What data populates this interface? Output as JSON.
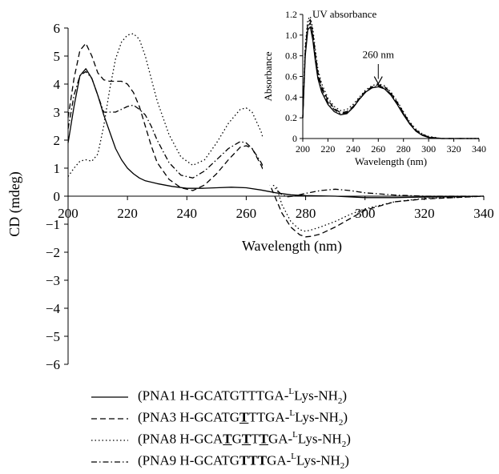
{
  "chart_data": [
    {
      "type": "line",
      "xlabel": "Wavelength (nm)",
      "ylabel": "CD (mdeg)",
      "xlim": [
        200,
        340
      ],
      "ylim": [
        -6,
        6
      ],
      "xticks": [
        200,
        220,
        240,
        260,
        280,
        300,
        320,
        340
      ],
      "yticks": [
        6,
        5,
        4,
        3,
        2,
        1,
        0,
        -1,
        -2,
        -3,
        -4,
        -5,
        -6
      ],
      "legend_position": "bottom",
      "series": [
        {
          "name": "(PNA1 H-GCATGTTTGA-ᴸLys-NH₂)",
          "dash": "solid",
          "x": [
            200,
            202,
            204,
            206,
            208,
            210,
            212,
            214,
            216,
            218,
            220,
            222,
            224,
            226,
            228,
            230,
            235,
            240,
            245,
            250,
            255,
            260,
            265,
            270,
            275,
            280,
            290,
            300,
            310,
            320,
            330,
            340
          ],
          "y": [
            1.9,
            3.2,
            4.3,
            4.55,
            4.2,
            3.6,
            2.9,
            2.3,
            1.7,
            1.3,
            1.0,
            0.8,
            0.65,
            0.55,
            0.5,
            0.45,
            0.35,
            0.28,
            0.28,
            0.3,
            0.32,
            0.3,
            0.22,
            0.12,
            0.05,
            0.02,
            0,
            -0.05,
            -0.05,
            -0.03,
            -0.02,
            0
          ]
        },
        {
          "name": "(PNA3 H-GCATGTTTGA-ᴸLys-NH₂)",
          "dash": "dashed",
          "x": [
            200,
            202,
            204,
            206,
            208,
            210,
            212,
            214,
            216,
            218,
            220,
            222,
            224,
            226,
            228,
            230,
            234,
            238,
            242,
            246,
            250,
            254,
            258,
            260,
            262,
            265,
            268,
            270,
            272,
            275,
            278,
            280,
            282,
            285,
            290,
            295,
            300,
            310,
            320,
            330,
            340
          ],
          "y": [
            2.8,
            4.2,
            5.2,
            5.45,
            5.0,
            4.4,
            4.15,
            4.1,
            4.1,
            4.1,
            4.0,
            3.7,
            3.2,
            2.5,
            1.8,
            1.2,
            0.6,
            0.3,
            0.2,
            0.4,
            0.8,
            1.3,
            1.75,
            1.8,
            1.7,
            1.1,
            0.4,
            -0.1,
            -0.6,
            -1.1,
            -1.38,
            -1.45,
            -1.43,
            -1.35,
            -1.1,
            -0.8,
            -0.5,
            -0.2,
            -0.1,
            -0.05,
            0
          ]
        },
        {
          "name": "(PNA8 H-GCATGTTTGA-ᴸLys-NH₂)",
          "dash": "dotted",
          "x": [
            200,
            202,
            204,
            206,
            208,
            210,
            212,
            214,
            216,
            218,
            220,
            222,
            224,
            226,
            228,
            230,
            234,
            238,
            242,
            246,
            250,
            254,
            258,
            260,
            262,
            265,
            268,
            270,
            272,
            275,
            278,
            280,
            282,
            285,
            290,
            295,
            300,
            310,
            320,
            330,
            340
          ],
          "y": [
            0.7,
            1.0,
            1.25,
            1.3,
            1.25,
            1.5,
            2.5,
            3.8,
            4.9,
            5.5,
            5.75,
            5.8,
            5.6,
            5.0,
            4.2,
            3.4,
            2.2,
            1.4,
            1.1,
            1.3,
            1.9,
            2.6,
            3.1,
            3.15,
            3.0,
            2.3,
            1.2,
            0.4,
            -0.3,
            -0.9,
            -1.2,
            -1.25,
            -1.2,
            -1.1,
            -0.9,
            -0.65,
            -0.45,
            -0.2,
            -0.08,
            -0.05,
            0
          ]
        },
        {
          "name": "(PNA9 H-GCATGTTTGA-ᴸLys-NH₂)",
          "dash": "dashdot",
          "x": [
            200,
            202,
            204,
            206,
            208,
            210,
            212,
            214,
            216,
            218,
            220,
            222,
            224,
            226,
            228,
            230,
            234,
            238,
            242,
            246,
            250,
            254,
            258,
            260,
            262,
            265,
            268,
            270,
            272,
            274,
            276,
            280,
            285,
            290,
            295,
            300,
            310,
            320,
            330,
            340
          ],
          "y": [
            2.4,
            3.6,
            4.3,
            4.45,
            4.2,
            3.6,
            3.0,
            3.0,
            3.0,
            3.1,
            3.2,
            3.25,
            3.1,
            2.9,
            2.5,
            2.0,
            1.2,
            0.75,
            0.65,
            0.9,
            1.3,
            1.7,
            1.95,
            1.9,
            1.7,
            1.2,
            0.6,
            0.25,
            0.05,
            -0.02,
            0.0,
            0.1,
            0.2,
            0.25,
            0.2,
            0.12,
            0.04,
            0.0,
            0.0,
            0
          ]
        }
      ]
    },
    {
      "type": "line",
      "title": "UV absorbance",
      "xlabel": "Wavelength (nm)",
      "ylabel": "Absorbance",
      "xlim": [
        200,
        340
      ],
      "ylim": [
        0,
        1.2
      ],
      "xticks": [
        200,
        220,
        240,
        260,
        280,
        300,
        320,
        340
      ],
      "yticks": [
        0,
        0.2,
        0.4,
        0.6,
        0.8,
        1.0,
        1.2
      ],
      "annotation": "260 nm",
      "series": [
        {
          "dash": "solid",
          "x": [
            200,
            202,
            204,
            206,
            208,
            210,
            212,
            215,
            220,
            225,
            230,
            235,
            240,
            245,
            250,
            255,
            260,
            265,
            270,
            275,
            280,
            285,
            290,
            295,
            300,
            310,
            320,
            330,
            340
          ],
          "y": [
            0.2,
            0.8,
            1.05,
            1.08,
            0.95,
            0.75,
            0.58,
            0.45,
            0.33,
            0.26,
            0.23,
            0.24,
            0.3,
            0.38,
            0.45,
            0.49,
            0.5,
            0.48,
            0.42,
            0.33,
            0.23,
            0.14,
            0.07,
            0.03,
            0.01,
            0,
            0,
            0,
            0
          ]
        },
        {
          "dash": "dashed",
          "x": [
            200,
            202,
            204,
            206,
            208,
            210,
            212,
            215,
            220,
            225,
            230,
            235,
            240,
            245,
            250,
            255,
            260,
            265,
            270,
            275,
            280,
            285,
            290,
            295,
            300,
            310,
            320,
            330,
            340
          ],
          "y": [
            0.2,
            0.85,
            1.12,
            1.15,
            1.02,
            0.82,
            0.64,
            0.5,
            0.37,
            0.29,
            0.25,
            0.26,
            0.31,
            0.39,
            0.46,
            0.5,
            0.52,
            0.5,
            0.44,
            0.35,
            0.25,
            0.15,
            0.08,
            0.04,
            0.015,
            0,
            0,
            0,
            0
          ]
        },
        {
          "dash": "dotted",
          "x": [
            200,
            202,
            204,
            206,
            208,
            210,
            212,
            215,
            220,
            225,
            230,
            235,
            240,
            245,
            250,
            255,
            260,
            265,
            270,
            275,
            280,
            285,
            290,
            295,
            300,
            310,
            320,
            330,
            340
          ],
          "y": [
            0.22,
            0.9,
            1.15,
            1.18,
            1.06,
            0.86,
            0.67,
            0.53,
            0.39,
            0.31,
            0.27,
            0.28,
            0.33,
            0.4,
            0.47,
            0.51,
            0.53,
            0.51,
            0.45,
            0.36,
            0.26,
            0.16,
            0.09,
            0.045,
            0.02,
            0,
            0,
            0,
            0
          ]
        },
        {
          "dash": "dashdot",
          "x": [
            200,
            202,
            204,
            206,
            208,
            210,
            212,
            215,
            220,
            225,
            230,
            235,
            240,
            245,
            250,
            255,
            260,
            265,
            270,
            275,
            280,
            285,
            290,
            295,
            300,
            310,
            320,
            330,
            340
          ],
          "y": [
            0.2,
            0.82,
            1.08,
            1.12,
            0.99,
            0.79,
            0.61,
            0.48,
            0.35,
            0.28,
            0.24,
            0.25,
            0.3,
            0.38,
            0.45,
            0.49,
            0.51,
            0.49,
            0.43,
            0.34,
            0.24,
            0.14,
            0.075,
            0.035,
            0.015,
            0,
            0,
            0,
            0
          ]
        }
      ]
    }
  ],
  "legend": {
    "items": [
      {
        "dash": "solid",
        "prefix": "(PNA1 H-GCA",
        "mid": "TGTTTGA-",
        "sup": "L",
        "tail": "Lys-NH",
        "sub": "2",
        "end": ")"
      },
      {
        "dash": "dashed",
        "prefix": "(PNA3 H-GCATG",
        "mid": "TTTGA-",
        "sup": "L",
        "tail": "Lys-NH",
        "sub": "2",
        "end": ")"
      },
      {
        "dash": "dotted",
        "prefix": "(PNA8 H-GCA",
        "mid": "TGTTTGA-",
        "sup": "L",
        "tail": "Lys-NH",
        "sub": "2",
        "end": ")"
      },
      {
        "dash": "dashdot",
        "prefix": "(PNA9 H-GCATG",
        "mid": "TTTGA-",
        "sup": "L",
        "tail": "Lys-NH",
        "sub": "2",
        "end": ")"
      }
    ]
  },
  "colors": {
    "line": "#000000",
    "background": "#ffffff"
  }
}
